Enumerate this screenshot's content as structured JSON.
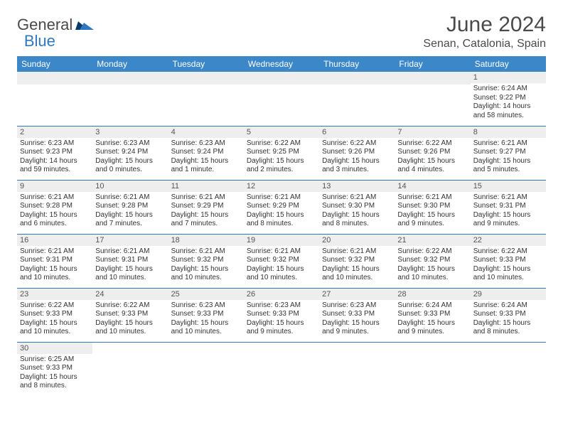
{
  "logo": {
    "text1": "General",
    "text2": "Blue"
  },
  "title": "June 2024",
  "location": "Senan, Catalonia, Spain",
  "colors": {
    "header_bg": "#3b87c8",
    "header_text": "#ffffff",
    "cell_border": "#2f78bf",
    "daynum_bg": "#eeeeee",
    "logo_blue": "#2f78bf",
    "page_bg": "#ffffff",
    "body_text": "#333333"
  },
  "weekdays": [
    "Sunday",
    "Monday",
    "Tuesday",
    "Wednesday",
    "Thursday",
    "Friday",
    "Saturday"
  ],
  "weeks": [
    [
      null,
      null,
      null,
      null,
      null,
      null,
      {
        "n": "1",
        "sr": "Sunrise: 6:24 AM",
        "ss": "Sunset: 9:22 PM",
        "d1": "Daylight: 14 hours",
        "d2": "and 58 minutes."
      }
    ],
    [
      {
        "n": "2",
        "sr": "Sunrise: 6:23 AM",
        "ss": "Sunset: 9:23 PM",
        "d1": "Daylight: 14 hours",
        "d2": "and 59 minutes."
      },
      {
        "n": "3",
        "sr": "Sunrise: 6:23 AM",
        "ss": "Sunset: 9:24 PM",
        "d1": "Daylight: 15 hours",
        "d2": "and 0 minutes."
      },
      {
        "n": "4",
        "sr": "Sunrise: 6:23 AM",
        "ss": "Sunset: 9:24 PM",
        "d1": "Daylight: 15 hours",
        "d2": "and 1 minute."
      },
      {
        "n": "5",
        "sr": "Sunrise: 6:22 AM",
        "ss": "Sunset: 9:25 PM",
        "d1": "Daylight: 15 hours",
        "d2": "and 2 minutes."
      },
      {
        "n": "6",
        "sr": "Sunrise: 6:22 AM",
        "ss": "Sunset: 9:26 PM",
        "d1": "Daylight: 15 hours",
        "d2": "and 3 minutes."
      },
      {
        "n": "7",
        "sr": "Sunrise: 6:22 AM",
        "ss": "Sunset: 9:26 PM",
        "d1": "Daylight: 15 hours",
        "d2": "and 4 minutes."
      },
      {
        "n": "8",
        "sr": "Sunrise: 6:21 AM",
        "ss": "Sunset: 9:27 PM",
        "d1": "Daylight: 15 hours",
        "d2": "and 5 minutes."
      }
    ],
    [
      {
        "n": "9",
        "sr": "Sunrise: 6:21 AM",
        "ss": "Sunset: 9:28 PM",
        "d1": "Daylight: 15 hours",
        "d2": "and 6 minutes."
      },
      {
        "n": "10",
        "sr": "Sunrise: 6:21 AM",
        "ss": "Sunset: 9:28 PM",
        "d1": "Daylight: 15 hours",
        "d2": "and 7 minutes."
      },
      {
        "n": "11",
        "sr": "Sunrise: 6:21 AM",
        "ss": "Sunset: 9:29 PM",
        "d1": "Daylight: 15 hours",
        "d2": "and 7 minutes."
      },
      {
        "n": "12",
        "sr": "Sunrise: 6:21 AM",
        "ss": "Sunset: 9:29 PM",
        "d1": "Daylight: 15 hours",
        "d2": "and 8 minutes."
      },
      {
        "n": "13",
        "sr": "Sunrise: 6:21 AM",
        "ss": "Sunset: 9:30 PM",
        "d1": "Daylight: 15 hours",
        "d2": "and 8 minutes."
      },
      {
        "n": "14",
        "sr": "Sunrise: 6:21 AM",
        "ss": "Sunset: 9:30 PM",
        "d1": "Daylight: 15 hours",
        "d2": "and 9 minutes."
      },
      {
        "n": "15",
        "sr": "Sunrise: 6:21 AM",
        "ss": "Sunset: 9:31 PM",
        "d1": "Daylight: 15 hours",
        "d2": "and 9 minutes."
      }
    ],
    [
      {
        "n": "16",
        "sr": "Sunrise: 6:21 AM",
        "ss": "Sunset: 9:31 PM",
        "d1": "Daylight: 15 hours",
        "d2": "and 10 minutes."
      },
      {
        "n": "17",
        "sr": "Sunrise: 6:21 AM",
        "ss": "Sunset: 9:31 PM",
        "d1": "Daylight: 15 hours",
        "d2": "and 10 minutes."
      },
      {
        "n": "18",
        "sr": "Sunrise: 6:21 AM",
        "ss": "Sunset: 9:32 PM",
        "d1": "Daylight: 15 hours",
        "d2": "and 10 minutes."
      },
      {
        "n": "19",
        "sr": "Sunrise: 6:21 AM",
        "ss": "Sunset: 9:32 PM",
        "d1": "Daylight: 15 hours",
        "d2": "and 10 minutes."
      },
      {
        "n": "20",
        "sr": "Sunrise: 6:21 AM",
        "ss": "Sunset: 9:32 PM",
        "d1": "Daylight: 15 hours",
        "d2": "and 10 minutes."
      },
      {
        "n": "21",
        "sr": "Sunrise: 6:22 AM",
        "ss": "Sunset: 9:32 PM",
        "d1": "Daylight: 15 hours",
        "d2": "and 10 minutes."
      },
      {
        "n": "22",
        "sr": "Sunrise: 6:22 AM",
        "ss": "Sunset: 9:33 PM",
        "d1": "Daylight: 15 hours",
        "d2": "and 10 minutes."
      }
    ],
    [
      {
        "n": "23",
        "sr": "Sunrise: 6:22 AM",
        "ss": "Sunset: 9:33 PM",
        "d1": "Daylight: 15 hours",
        "d2": "and 10 minutes."
      },
      {
        "n": "24",
        "sr": "Sunrise: 6:22 AM",
        "ss": "Sunset: 9:33 PM",
        "d1": "Daylight: 15 hours",
        "d2": "and 10 minutes."
      },
      {
        "n": "25",
        "sr": "Sunrise: 6:23 AM",
        "ss": "Sunset: 9:33 PM",
        "d1": "Daylight: 15 hours",
        "d2": "and 10 minutes."
      },
      {
        "n": "26",
        "sr": "Sunrise: 6:23 AM",
        "ss": "Sunset: 9:33 PM",
        "d1": "Daylight: 15 hours",
        "d2": "and 9 minutes."
      },
      {
        "n": "27",
        "sr": "Sunrise: 6:23 AM",
        "ss": "Sunset: 9:33 PM",
        "d1": "Daylight: 15 hours",
        "d2": "and 9 minutes."
      },
      {
        "n": "28",
        "sr": "Sunrise: 6:24 AM",
        "ss": "Sunset: 9:33 PM",
        "d1": "Daylight: 15 hours",
        "d2": "and 9 minutes."
      },
      {
        "n": "29",
        "sr": "Sunrise: 6:24 AM",
        "ss": "Sunset: 9:33 PM",
        "d1": "Daylight: 15 hours",
        "d2": "and 8 minutes."
      }
    ],
    [
      {
        "n": "30",
        "sr": "Sunrise: 6:25 AM",
        "ss": "Sunset: 9:33 PM",
        "d1": "Daylight: 15 hours",
        "d2": "and 8 minutes."
      },
      null,
      null,
      null,
      null,
      null,
      null
    ]
  ]
}
